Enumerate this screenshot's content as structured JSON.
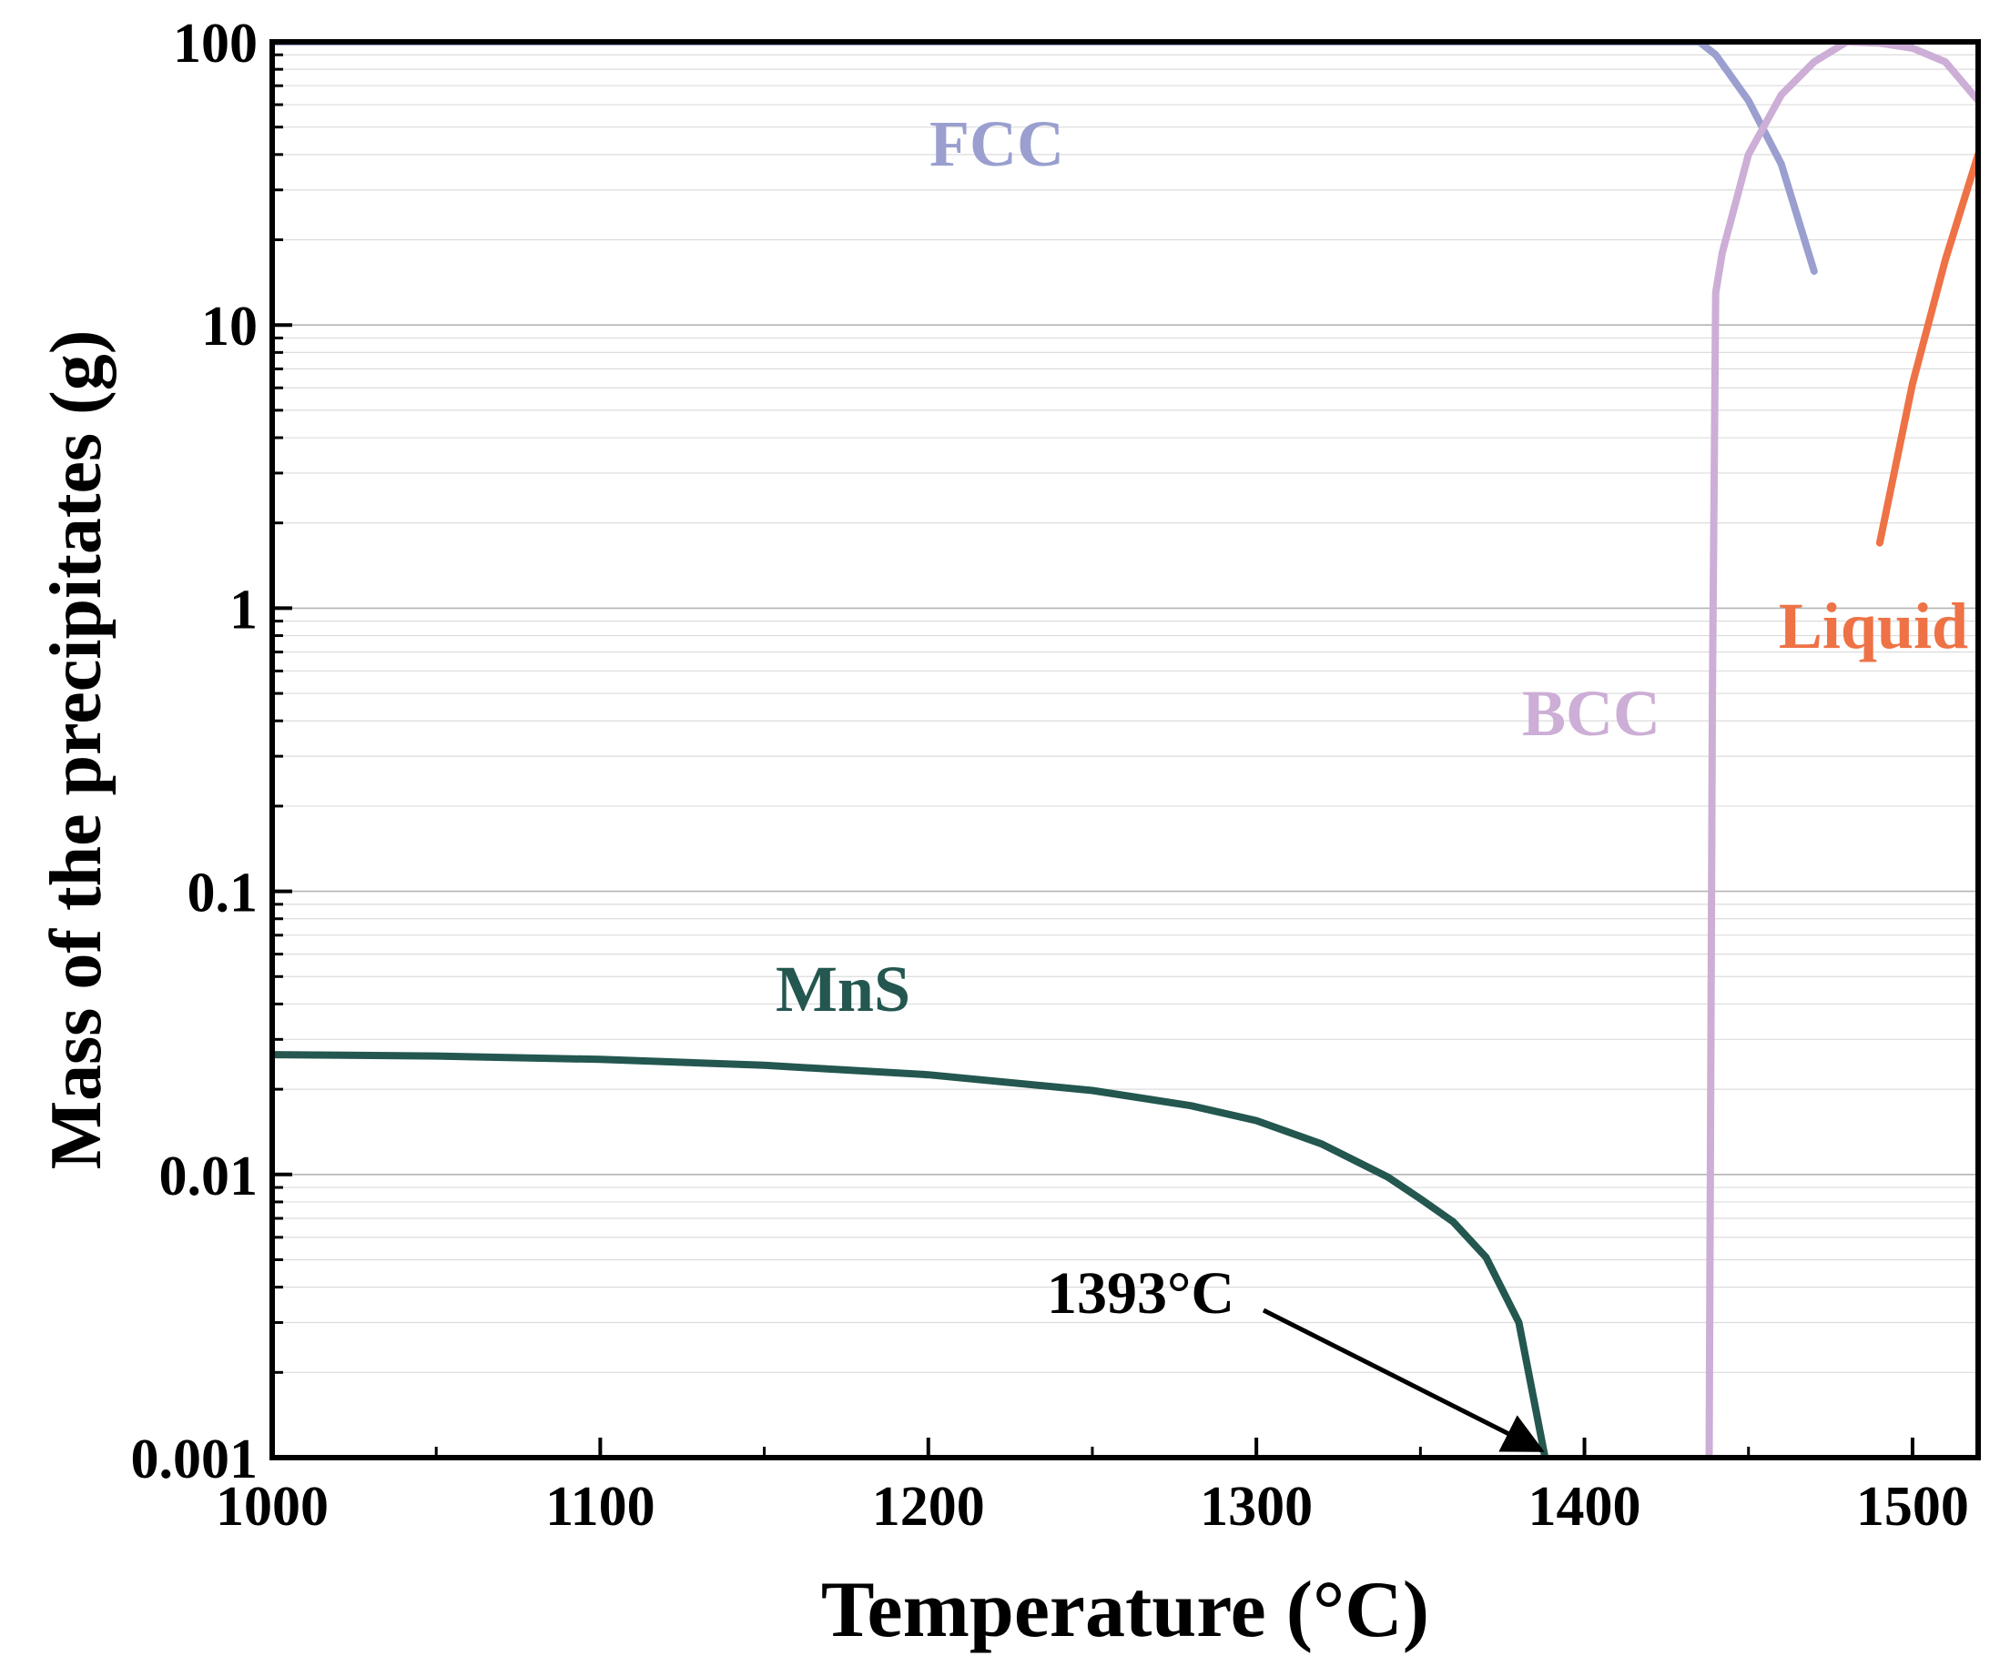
{
  "chart_data": {
    "type": "line",
    "title": "",
    "xlabel": "Temperature (°C)",
    "ylabel": "Mass of the precipitates (g)",
    "xlim": [
      1000,
      1520
    ],
    "ylim": [
      0.001,
      100
    ],
    "yscale": "log",
    "grid": "horizontal, major and minor",
    "x_ticks": [
      "1000",
      "1100",
      "1200",
      "1300",
      "1400",
      "1500"
    ],
    "y_ticks": [
      "0.001",
      "0.01",
      "0.1",
      "1",
      "10",
      "100"
    ],
    "series": [
      {
        "name": "FCC",
        "color": "#9A9FCF",
        "x": [
          1000,
          1100,
          1200,
          1300,
          1400,
          1435,
          1440,
          1450,
          1460,
          1470
        ],
        "y": [
          100,
          100,
          100,
          100,
          100,
          100,
          90,
          62,
          37,
          15.5
        ]
      },
      {
        "name": "BCC",
        "color": "#CDAED6",
        "x": [
          1438,
          1439,
          1440,
          1442,
          1450,
          1460,
          1470,
          1480,
          1490,
          1500,
          1510,
          1520
        ],
        "y": [
          0.001,
          0.5,
          13,
          18,
          40,
          65,
          85,
          100,
          99,
          95,
          85,
          62
        ]
      },
      {
        "name": "Liquid",
        "color": "#EE7245",
        "x": [
          1490,
          1500,
          1510,
          1520
        ],
        "y": [
          1.7,
          6.2,
          17,
          40
        ]
      },
      {
        "name": "MnS",
        "color": "#23574F",
        "x": [
          1000,
          1050,
          1100,
          1150,
          1200,
          1250,
          1280,
          1300,
          1320,
          1340,
          1350,
          1360,
          1370,
          1380,
          1388
        ],
        "y": [
          0.0265,
          0.0262,
          0.0255,
          0.0243,
          0.0225,
          0.0198,
          0.0175,
          0.0155,
          0.0128,
          0.0098,
          0.0082,
          0.0068,
          0.0051,
          0.003,
          0.001
        ]
      }
    ],
    "annotations": [
      {
        "text": "1393°C",
        "arrow_to": {
          "x": 1388,
          "y": 0.001
        }
      }
    ]
  }
}
